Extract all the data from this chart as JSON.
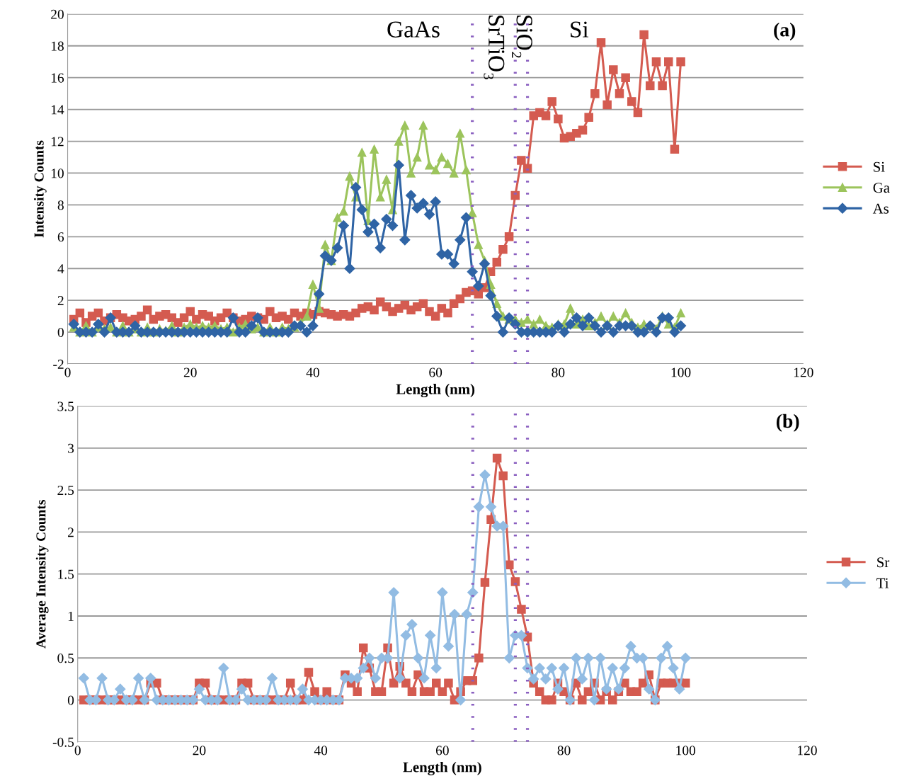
{
  "chart_data": [
    {
      "type": "line",
      "title": "(a)",
      "xlabel": "Length (nm)",
      "ylabel": "Intensity Counts",
      "xlim": [
        0,
        120
      ],
      "xticks": [
        0,
        20,
        40,
        60,
        80,
        100,
        120
      ],
      "ylim": [
        -2,
        20
      ],
      "yticks": [
        -2,
        0,
        2,
        4,
        6,
        8,
        10,
        12,
        14,
        16,
        18,
        20
      ],
      "grid": "y",
      "legend": "right",
      "x": [
        1,
        2,
        3,
        4,
        5,
        6,
        7,
        8,
        9,
        10,
        11,
        12,
        13,
        14,
        15,
        16,
        17,
        18,
        19,
        20,
        21,
        22,
        23,
        24,
        25,
        26,
        27,
        28,
        29,
        30,
        31,
        32,
        33,
        34,
        35,
        36,
        37,
        38,
        39,
        40,
        41,
        42,
        43,
        44,
        45,
        46,
        47,
        48,
        49,
        50,
        51,
        52,
        53,
        54,
        55,
        56,
        57,
        58,
        59,
        60,
        61,
        62,
        63,
        64,
        65,
        66,
        67,
        68,
        69,
        70,
        71,
        72,
        73,
        74,
        75,
        76,
        77,
        78,
        79,
        80,
        81,
        82,
        83,
        84,
        85,
        86,
        87,
        88,
        89,
        90,
        91,
        92,
        93,
        94,
        95,
        96,
        97,
        98,
        99,
        100
      ],
      "series": [
        {
          "name": "Si",
          "color": "#d45b50",
          "marker": "square",
          "values": [
            0.8,
            1.2,
            0.6,
            1.0,
            1.2,
            0.7,
            0.9,
            1.1,
            0.9,
            0.7,
            0.8,
            1.0,
            1.4,
            0.8,
            1.0,
            1.1,
            0.9,
            0.6,
            0.9,
            1.3,
            0.8,
            1.1,
            1.0,
            0.7,
            0.9,
            1.2,
            0.9,
            0.7,
            0.8,
            1.0,
            0.9,
            0.8,
            1.3,
            0.9,
            1.0,
            0.8,
            1.2,
            1.0,
            1.2,
            1.1,
            1.3,
            1.2,
            1.1,
            1.0,
            1.1,
            1.0,
            1.2,
            1.5,
            1.6,
            1.4,
            1.9,
            1.6,
            1.3,
            1.5,
            1.7,
            1.4,
            1.6,
            1.8,
            1.3,
            1.0,
            1.5,
            1.2,
            1.8,
            2.1,
            2.5,
            2.6,
            2.4,
            2.8,
            3.8,
            4.4,
            5.2,
            6.0,
            8.6,
            10.8,
            10.3,
            13.6,
            13.8,
            13.6,
            14.5,
            13.4,
            12.2,
            12.3,
            12.5,
            12.7,
            13.5,
            15.0,
            18.2,
            14.3,
            16.5,
            15.0,
            16.0,
            14.5,
            13.8,
            18.7,
            15.5,
            17.0,
            15.5,
            17.0,
            11.5,
            17.0
          ]
        },
        {
          "name": "Ga",
          "color": "#9cc45c",
          "marker": "triangle",
          "values": [
            0.3,
            0,
            0.4,
            0,
            0.3,
            0.2,
            0.3,
            0,
            0.4,
            0,
            0.2,
            0,
            0.3,
            0,
            0.2,
            0.1,
            0.4,
            0,
            0.3,
            0.5,
            0.3,
            0.4,
            0.3,
            0.4,
            0.2,
            0.3,
            0,
            0.3,
            0.5,
            0.2,
            0.3,
            0,
            0.3,
            0,
            0.3,
            0.2,
            0.3,
            0.6,
            1.0,
            3.0,
            1.5,
            5.5,
            4.5,
            7.2,
            7.6,
            9.8,
            8.5,
            11.3,
            7.0,
            11.5,
            8.5,
            9.6,
            7.7,
            12.0,
            13.0,
            10.0,
            11.0,
            13.0,
            10.5,
            10.2,
            11.0,
            10.6,
            10.0,
            12.5,
            10.2,
            7.5,
            5.5,
            4.5,
            3.0,
            1.8,
            1.0,
            0.8,
            0.8,
            0.6,
            0.8,
            0.5,
            0.8,
            0.4,
            0.3,
            0.5,
            0.5,
            1.5,
            0.5,
            0.8,
            0.4,
            0.6,
            1.0,
            0.5,
            1.0,
            0.6,
            1.2,
            0.6,
            0.3,
            0.5,
            0.4,
            0.2,
            1.0,
            0.5,
            0.3,
            1.2
          ]
        },
        {
          "name": "As",
          "color": "#2f64a5",
          "marker": "diamond",
          "values": [
            0.5,
            0,
            0,
            0,
            0.5,
            0,
            0.9,
            0,
            0,
            0,
            0.4,
            0,
            0,
            0,
            0,
            0,
            0,
            0,
            0,
            0,
            0,
            0,
            0,
            0,
            0,
            0,
            0.9,
            0,
            0,
            0.4,
            0.9,
            0,
            0,
            0,
            0,
            0,
            0.4,
            0.4,
            0,
            0.4,
            2.4,
            4.8,
            4.5,
            5.3,
            6.7,
            4.0,
            9.1,
            7.7,
            6.3,
            6.8,
            5.3,
            7.1,
            6.7,
            10.5,
            5.8,
            8.6,
            7.8,
            8.1,
            7.4,
            8.2,
            4.9,
            4.9,
            4.3,
            5.8,
            7.2,
            3.8,
            2.9,
            4.3,
            2.3,
            1.0,
            0,
            0.9,
            0.5,
            0,
            0,
            0,
            0,
            0,
            0,
            0.4,
            0,
            0.5,
            0.9,
            0.4,
            0.9,
            0.4,
            0,
            0.4,
            0,
            0.4,
            0.4,
            0.4,
            0,
            0,
            0.4,
            0,
            0.9,
            0.9,
            0,
            0.4
          ]
        }
      ],
      "ref_lines": [
        {
          "axis": "x",
          "value": 66,
          "color": "#8a5fc0",
          "line_style": "dotted"
        },
        {
          "axis": "x",
          "value": 73,
          "color": "#8a5fc0",
          "line_style": "dotted"
        },
        {
          "axis": "x",
          "value": 75,
          "color": "#8a5fc0",
          "line_style": "dotted"
        }
      ],
      "annotations": [
        "GaAs",
        "SrTiO₃",
        "SiO₂",
        "Si"
      ]
    },
    {
      "type": "line",
      "title": "(b)",
      "xlabel": "Length (nm)",
      "ylabel": "Average Intensity Counts",
      "xlim": [
        0,
        120
      ],
      "xticks": [
        0,
        20,
        40,
        60,
        80,
        100,
        120
      ],
      "ylim": [
        -0.5,
        3.5
      ],
      "yticks": [
        -0.5,
        0,
        0.5,
        1,
        1.5,
        2,
        2.5,
        3,
        3.5
      ],
      "grid": "y",
      "legend": "right",
      "x": [
        1,
        2,
        3,
        4,
        5,
        6,
        7,
        8,
        9,
        10,
        11,
        12,
        13,
        14,
        15,
        16,
        17,
        18,
        19,
        20,
        21,
        22,
        23,
        24,
        25,
        26,
        27,
        28,
        29,
        30,
        31,
        32,
        33,
        34,
        35,
        36,
        37,
        38,
        39,
        40,
        41,
        42,
        43,
        44,
        45,
        46,
        47,
        48,
        49,
        50,
        51,
        52,
        53,
        54,
        55,
        56,
        57,
        58,
        59,
        60,
        61,
        62,
        63,
        64,
        65,
        66,
        67,
        68,
        69,
        70,
        71,
        72,
        73,
        74,
        75,
        76,
        77,
        78,
        79,
        80,
        81,
        82,
        83,
        84,
        85,
        86,
        87,
        88,
        89,
        90,
        91,
        92,
        93,
        94,
        95,
        96,
        97,
        98,
        99,
        100
      ],
      "series": [
        {
          "name": "Sr",
          "color": "#d45b50",
          "marker": "square",
          "values": [
            0,
            0,
            0,
            0,
            0,
            0,
            0,
            0,
            0,
            0,
            0,
            0.2,
            0.2,
            0,
            0,
            0,
            0,
            0,
            0,
            0.2,
            0.2,
            0,
            0,
            0,
            0,
            0,
            0.2,
            0.2,
            0,
            0,
            0,
            0,
            0,
            0,
            0.2,
            0,
            0,
            0.33,
            0.1,
            0,
            0.1,
            0,
            0,
            0.3,
            0.2,
            0.1,
            0.62,
            0.38,
            0.1,
            0.1,
            0.62,
            0.2,
            0.4,
            0.2,
            0.1,
            0.3,
            0.1,
            0.1,
            0.2,
            0.1,
            0.2,
            0,
            0.1,
            0.23,
            0.23,
            0.5,
            1.4,
            2.15,
            2.88,
            2.67,
            1.61,
            1.41,
            1.08,
            0.75,
            0.2,
            0.1,
            0,
            0,
            0.2,
            0.1,
            0,
            0.2,
            0,
            0.1,
            0.2,
            0,
            0.1,
            0,
            0.1,
            0.2,
            0.1,
            0.1,
            0.2,
            0.3,
            0,
            0.2,
            0.2,
            0.2,
            0.2,
            0.2
          ]
        },
        {
          "name": "Ti",
          "color": "#92bce3",
          "marker": "diamond",
          "values": [
            0.26,
            0,
            0,
            0.26,
            0,
            0,
            0.13,
            0,
            0,
            0.26,
            0,
            0.26,
            0,
            0,
            0,
            0,
            0,
            0,
            0,
            0.13,
            0,
            0,
            0,
            0.38,
            0,
            0,
            0.13,
            0,
            0,
            0,
            0,
            0.26,
            0,
            0,
            0,
            0,
            0.13,
            0,
            0,
            0,
            0,
            0,
            0,
            0.26,
            0.26,
            0.26,
            0.38,
            0.5,
            0.26,
            0.5,
            0.5,
            1.28,
            0.26,
            0.77,
            0.9,
            0.5,
            0.26,
            0.77,
            0.38,
            1.28,
            0.64,
            1.02,
            0,
            1.02,
            1.28,
            2.3,
            2.68,
            2.3,
            2.07,
            2.07,
            0.5,
            0.77,
            0.77,
            0.38,
            0.25,
            0.38,
            0.25,
            0.38,
            0.13,
            0.38,
            0,
            0.5,
            0.25,
            0.5,
            0,
            0.5,
            0.13,
            0.38,
            0.13,
            0.38,
            0.64,
            0.5,
            0.5,
            0.13,
            0,
            0.5,
            0.64,
            0.38,
            0.13,
            0.5
          ]
        }
      ],
      "ref_lines": [
        {
          "axis": "x",
          "value": 65,
          "color": "#8a5fc0",
          "line_style": "dotted"
        },
        {
          "axis": "x",
          "value": 72,
          "color": "#8a5fc0",
          "line_style": "dotted"
        },
        {
          "axis": "x",
          "value": 74,
          "color": "#8a5fc0",
          "line_style": "dotted"
        }
      ]
    }
  ]
}
